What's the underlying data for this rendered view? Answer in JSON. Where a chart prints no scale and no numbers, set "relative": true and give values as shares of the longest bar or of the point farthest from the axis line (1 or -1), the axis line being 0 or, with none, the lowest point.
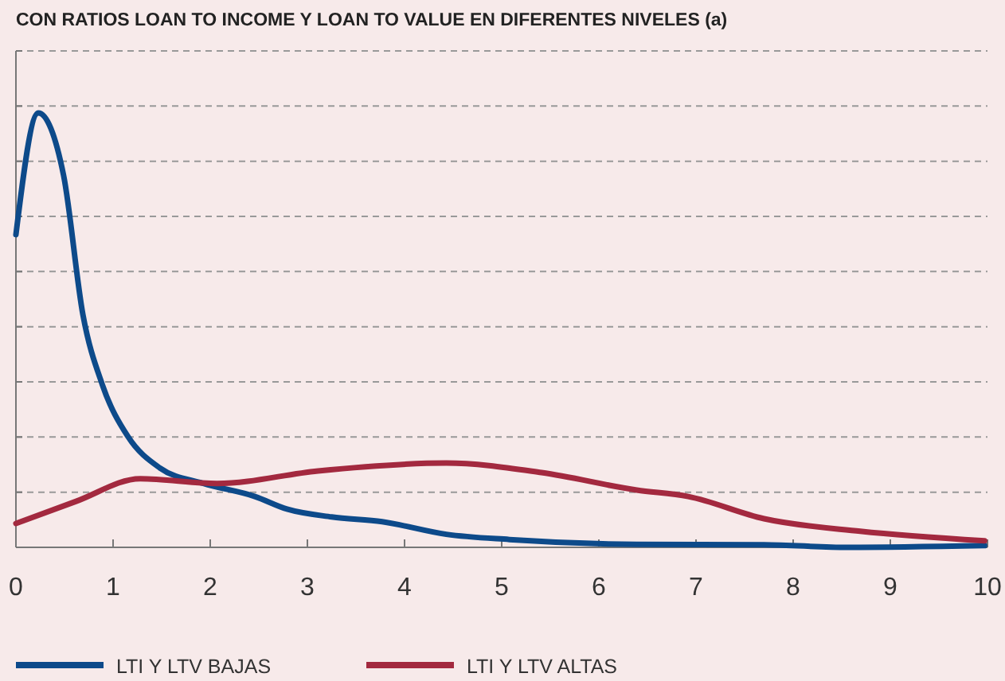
{
  "chart_data": {
    "type": "line",
    "title": "CON RATIOS LOAN TO INCOME Y LOAN TO VALUE EN DIFERENTES NIVELES (a)",
    "relative": true,
    "xlim": [
      0,
      10
    ],
    "xticks": [
      0,
      1,
      2,
      3,
      4,
      5,
      6,
      7,
      8,
      9,
      10
    ],
    "grid": "y",
    "legend": "bottom",
    "line_style": "solid",
    "marker": "none",
    "series": [
      {
        "name": "LTI Y LTV BAJAS",
        "color": "#0d4a8a",
        "x": [
          0,
          0.23,
          0.49,
          0.69,
          0.89,
          1.15,
          1.48,
          1.93,
          2.46,
          2.79,
          3.25,
          3.77,
          4.43,
          5.08,
          6.39,
          7.7,
          8.56,
          9.97
        ],
        "values": [
          0.72,
          1,
          0.857,
          0.535,
          0.374,
          0.256,
          0.183,
          0.147,
          0.117,
          0.088,
          0.07,
          0.059,
          0.03,
          0.018,
          0.007,
          0.006,
          0,
          0.004
        ]
      },
      {
        "name": "LTI Y LTV ALTAS",
        "color": "#a3293f",
        "x": [
          0,
          0.62,
          1.28,
          2.07,
          3.11,
          4.43,
          5.41,
          6.39,
          6.92,
          7.7,
          8.69,
          9.97
        ],
        "values": [
          0.055,
          0.106,
          0.158,
          0.147,
          0.176,
          0.194,
          0.172,
          0.132,
          0.117,
          0.066,
          0.037,
          0.015
        ]
      }
    ]
  }
}
